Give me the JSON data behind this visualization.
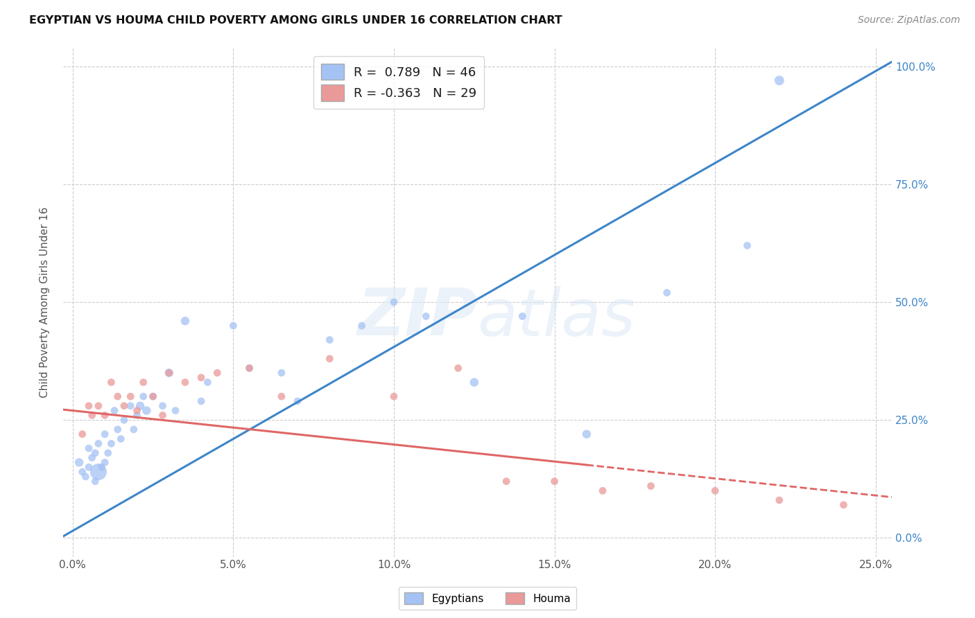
{
  "title": "EGYPTIAN VS HOUMA CHILD POVERTY AMONG GIRLS UNDER 16 CORRELATION CHART",
  "source": "Source: ZipAtlas.com",
  "ylabel": "Child Poverty Among Girls Under 16",
  "xlabel_vals": [
    0.0,
    5.0,
    10.0,
    15.0,
    20.0,
    25.0
  ],
  "ylabel_vals": [
    0.0,
    25.0,
    50.0,
    75.0,
    100.0
  ],
  "xlim": [
    -0.3,
    25.5
  ],
  "ylim": [
    -4.0,
    104.0
  ],
  "watermark": "ZIPatlas",
  "legend_blue_r": "0.789",
  "legend_blue_n": "46",
  "legend_pink_r": "-0.363",
  "legend_pink_n": "29",
  "legend_label_blue": "Egyptians",
  "legend_label_pink": "Houma",
  "blue_color": "#a4c2f4",
  "pink_color": "#ea9999",
  "blue_line_color": "#3d85c8",
  "pink_line_color": "#e06666",
  "background_color": "#ffffff",
  "grid_color": "#cccccc",
  "blue_line_intercept": 1.5,
  "blue_line_slope": 3.9,
  "pink_line_intercept": 27.0,
  "pink_line_slope": -0.72,
  "egyptians_x": [
    0.2,
    0.3,
    0.4,
    0.5,
    0.5,
    0.6,
    0.7,
    0.7,
    0.8,
    0.8,
    0.9,
    1.0,
    1.0,
    1.1,
    1.2,
    1.3,
    1.4,
    1.5,
    1.6,
    1.8,
    1.9,
    2.0,
    2.1,
    2.2,
    2.3,
    2.5,
    2.8,
    3.0,
    3.2,
    3.5,
    4.0,
    4.2,
    5.0,
    5.5,
    6.5,
    7.0,
    8.0,
    9.0,
    10.0,
    11.0,
    12.5,
    14.0,
    16.0,
    18.5,
    21.0,
    22.0
  ],
  "egyptians_y": [
    16.0,
    14.0,
    13.0,
    15.0,
    19.0,
    17.0,
    12.0,
    18.0,
    14.0,
    20.0,
    15.0,
    16.0,
    22.0,
    18.0,
    20.0,
    27.0,
    23.0,
    21.0,
    25.0,
    28.0,
    23.0,
    26.0,
    28.0,
    30.0,
    27.0,
    30.0,
    28.0,
    35.0,
    27.0,
    46.0,
    29.0,
    33.0,
    45.0,
    36.0,
    35.0,
    29.0,
    42.0,
    45.0,
    50.0,
    47.0,
    33.0,
    47.0,
    22.0,
    52.0,
    62.0,
    97.0
  ],
  "egyptians_size": [
    80,
    60,
    60,
    60,
    60,
    60,
    60,
    60,
    300,
    60,
    60,
    60,
    60,
    60,
    60,
    60,
    60,
    60,
    60,
    60,
    60,
    60,
    80,
    60,
    80,
    60,
    60,
    80,
    60,
    80,
    60,
    60,
    60,
    60,
    60,
    60,
    60,
    60,
    60,
    60,
    80,
    60,
    80,
    60,
    60,
    100
  ],
  "houma_x": [
    0.3,
    0.5,
    0.6,
    0.8,
    1.0,
    1.2,
    1.4,
    1.6,
    1.8,
    2.0,
    2.2,
    2.5,
    2.8,
    3.0,
    3.5,
    4.0,
    4.5,
    5.5,
    6.5,
    8.0,
    10.0,
    12.0,
    13.5,
    15.0,
    16.5,
    18.0,
    20.0,
    22.0,
    24.0
  ],
  "houma_y": [
    22.0,
    28.0,
    26.0,
    28.0,
    26.0,
    33.0,
    30.0,
    28.0,
    30.0,
    27.0,
    33.0,
    30.0,
    26.0,
    35.0,
    33.0,
    34.0,
    35.0,
    36.0,
    30.0,
    38.0,
    30.0,
    36.0,
    12.0,
    12.0,
    10.0,
    11.0,
    10.0,
    8.0,
    7.0
  ],
  "houma_size": [
    60,
    60,
    60,
    60,
    60,
    60,
    60,
    60,
    60,
    60,
    60,
    60,
    60,
    60,
    60,
    60,
    60,
    60,
    60,
    60,
    60,
    60,
    60,
    60,
    60,
    60,
    60,
    60,
    60
  ]
}
